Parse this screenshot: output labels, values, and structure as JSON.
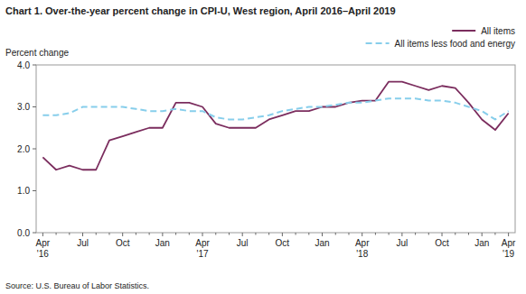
{
  "chart_data": {
    "type": "line",
    "title": "Chart 1. Over-the-year percent change in CPI-U, West region, April 2016–April 2019",
    "y_label": "Percent change",
    "source": "Source: U.S. Bureau of Labor Statistics.",
    "categories": [
      "Apr\n'16",
      null,
      null,
      "Jul",
      null,
      null,
      "Oct",
      null,
      null,
      "Jan",
      null,
      null,
      "Apr\n'17",
      null,
      null,
      "Jul",
      null,
      null,
      "Oct",
      null,
      null,
      "Jan",
      null,
      null,
      "Apr\n'18",
      null,
      null,
      "Jul",
      null,
      null,
      "Oct",
      null,
      null,
      "Jan",
      null,
      "Apr\n'19"
    ],
    "series": [
      {
        "name": "All items",
        "color": "#7B2D5E",
        "line_style": "solid",
        "values": [
          1.8,
          1.5,
          1.6,
          1.5,
          1.5,
          2.2,
          2.3,
          2.4,
          2.5,
          2.5,
          3.1,
          3.1,
          3.0,
          2.6,
          2.5,
          2.5,
          2.5,
          2.7,
          2.8,
          2.9,
          2.9,
          3.0,
          3.0,
          3.1,
          3.15,
          3.15,
          3.6,
          3.6,
          3.5,
          3.4,
          3.5,
          3.45,
          3.1,
          2.7,
          2.45,
          2.85
        ]
      },
      {
        "name": "All items less food and energy",
        "color": "#87CEEB",
        "line_style": "dashed",
        "values": [
          2.8,
          2.8,
          2.85,
          3.0,
          3.0,
          3.0,
          3.0,
          2.95,
          2.9,
          2.9,
          2.95,
          2.9,
          2.9,
          2.75,
          2.7,
          2.7,
          2.75,
          2.8,
          2.9,
          2.95,
          3.0,
          3.0,
          3.05,
          3.1,
          3.1,
          3.15,
          3.2,
          3.2,
          3.2,
          3.15,
          3.15,
          3.1,
          3.0,
          2.9,
          2.7,
          2.9
        ]
      }
    ],
    "ylim": [
      0.0,
      4.0
    ],
    "yticks": [
      {
        "value": 0.0,
        "label": "0.0"
      },
      {
        "value": 1.0,
        "label": "1.0"
      },
      {
        "value": 2.0,
        "label": "2.0"
      },
      {
        "value": 3.0,
        "label": "3.0"
      },
      {
        "value": 4.0,
        "label": "4.0"
      }
    ],
    "grid": false,
    "legend": "top-right"
  }
}
